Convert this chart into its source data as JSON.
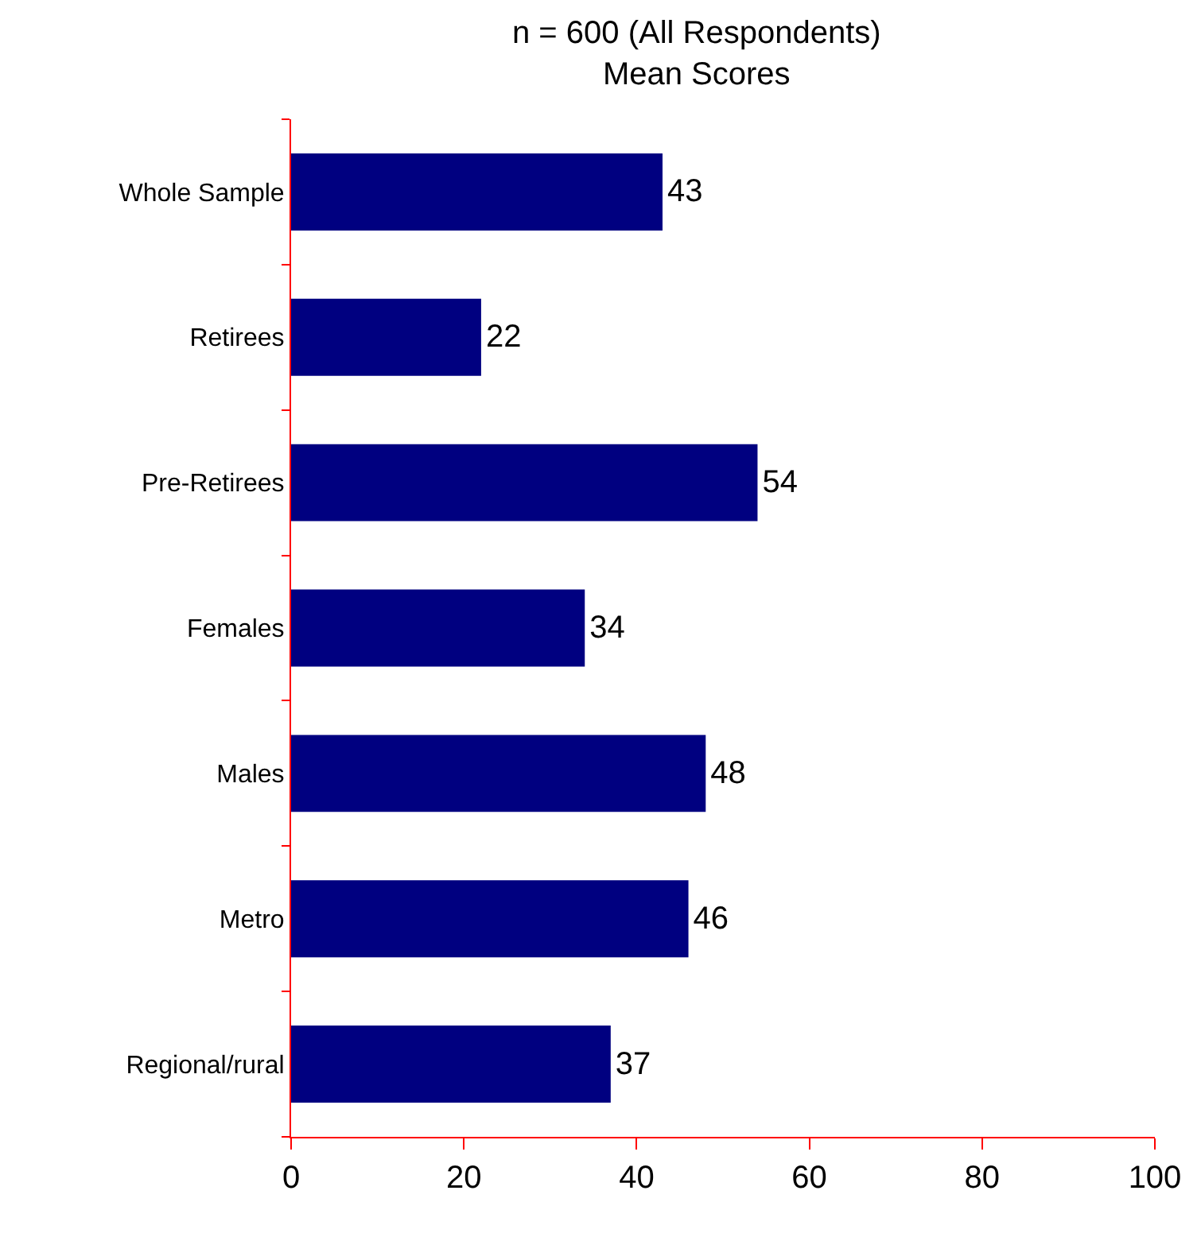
{
  "chart_data": {
    "type": "bar",
    "orientation": "horizontal",
    "title": "n = 600 (All Respondents)",
    "subtitle": "Mean Scores",
    "categories": [
      "Whole Sample",
      "Retirees",
      "Pre-Retirees",
      "Females",
      "Males",
      "Metro",
      "Regional/rural"
    ],
    "values": [
      43,
      22,
      54,
      34,
      48,
      46,
      37
    ],
    "color": "#000080",
    "xlim": [
      0,
      100
    ],
    "xticks": [
      0,
      20,
      40,
      60,
      80,
      100
    ],
    "data_labels": true,
    "legend": false
  }
}
